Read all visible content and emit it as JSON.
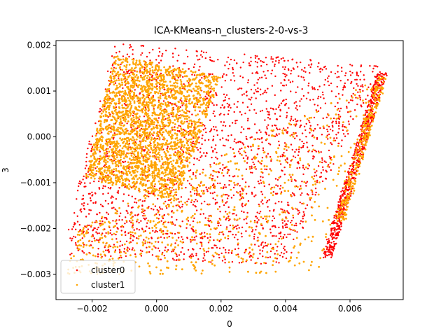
{
  "chart_data": {
    "type": "scatter",
    "title": "ICA-KMeans-n_clusters-2-0-vs-3",
    "xlabel": "0",
    "ylabel": "3",
    "xlim": [
      -0.00312,
      0.00765
    ],
    "ylim": [
      -0.00355,
      0.0021
    ],
    "xticks": [
      -0.002,
      0.0,
      0.002,
      0.004,
      0.006
    ],
    "xtick_labels": [
      "−0.002",
      "0.000",
      "0.002",
      "0.004",
      "0.006"
    ],
    "yticks": [
      -0.003,
      -0.002,
      -0.001,
      0.0,
      0.001,
      0.002
    ],
    "ytick_labels": [
      "−0.003",
      "−0.002",
      "−0.001",
      "0.000",
      "0.001",
      "0.002"
    ],
    "grid": false,
    "legend_position": "lower-left",
    "series": [
      {
        "name": "cluster0",
        "color": "#ff0000",
        "regions": [
          {
            "shape": "parallelogram",
            "corners": [
              [
                -0.0013,
                0.00205
              ],
              [
                0.007,
                0.00155
              ],
              [
                0.004,
                -0.0028
              ],
              [
                -0.003,
                -0.0026
              ]
            ],
            "points": 2200
          },
          {
            "shape": "band",
            "from": [
              0.0053,
              -0.0026
            ],
            "to": [
              0.007,
              0.0014
            ],
            "width": 0.0003,
            "points": 700
          }
        ]
      },
      {
        "name": "cluster1",
        "color": "#ffa500",
        "regions": [
          {
            "shape": "parallelogram",
            "corners": [
              [
                -0.0013,
                0.0018
              ],
              [
                0.002,
                0.0013
              ],
              [
                0.0006,
                -0.0014
              ],
              [
                -0.0022,
                -0.0009
              ]
            ],
            "points": 2400
          },
          {
            "shape": "parallelogram",
            "corners": [
              [
                -0.0024,
                -0.002
              ],
              [
                0.007,
                0.0014
              ],
              [
                0.005,
                -0.003
              ],
              [
                -0.0028,
                -0.003
              ]
            ],
            "points": 700
          },
          {
            "shape": "band",
            "from": [
              0.0057,
              -0.0018
            ],
            "to": [
              0.007,
              0.0013
            ],
            "width": 0.0003,
            "points": 250
          }
        ]
      }
    ]
  }
}
